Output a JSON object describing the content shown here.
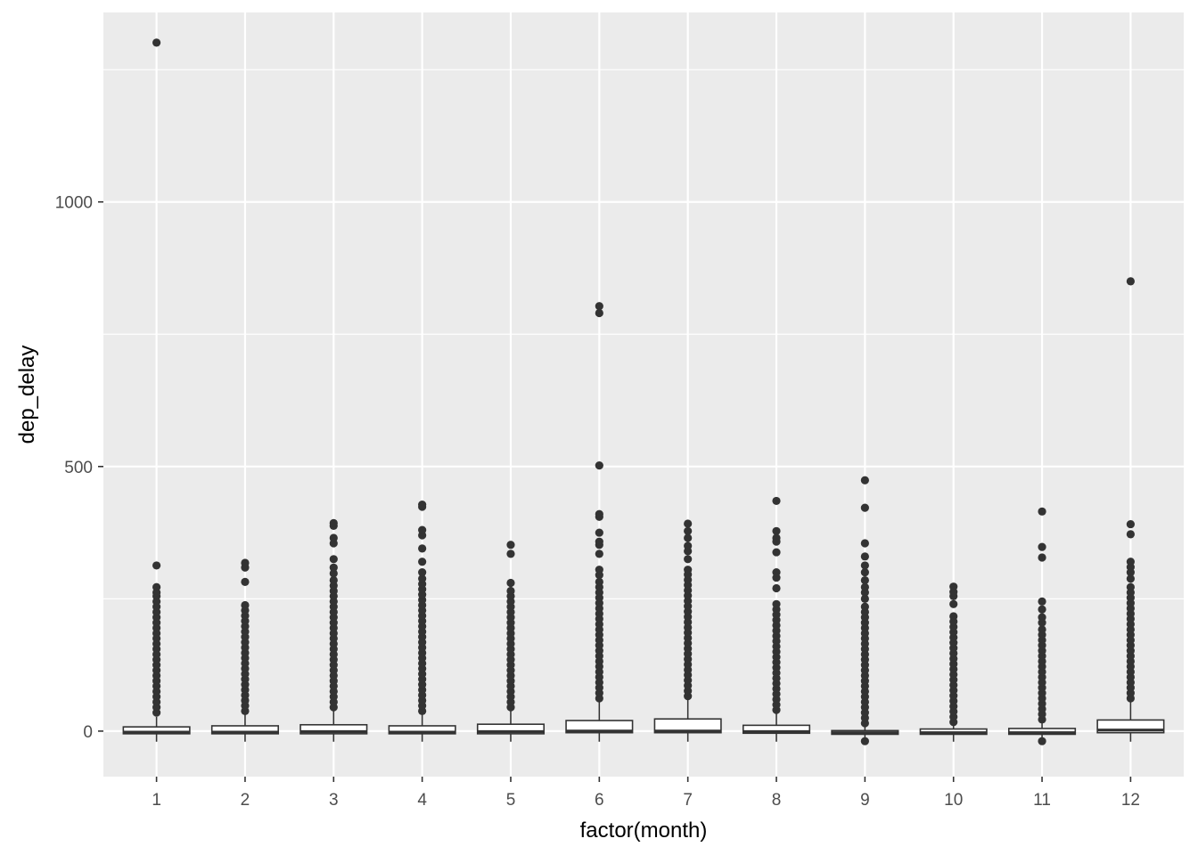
{
  "chart_data": {
    "type": "boxplot",
    "xlabel": "factor(month)",
    "ylabel": "dep_delay",
    "categories": [
      "1",
      "2",
      "3",
      "4",
      "5",
      "6",
      "7",
      "8",
      "9",
      "10",
      "11",
      "12"
    ],
    "y_ticks": [
      0,
      500,
      1000
    ],
    "y_tick_labels": [
      "0",
      "500",
      "1000"
    ],
    "ylim": [
      -86,
      1358
    ],
    "grid": true,
    "background": "#EBEBEB",
    "gridline_color": "#FFFFFF",
    "box_fill": "#FFFFFF",
    "outline_color": "#333333",
    "boxes": [
      {
        "month": "1",
        "min": -20,
        "q1": -5,
        "median": -2,
        "q3": 8,
        "max": 27,
        "outliers": [
          35,
          45,
          55,
          65,
          75,
          85,
          95,
          105,
          115,
          125,
          135,
          145,
          155,
          165,
          175,
          185,
          195,
          205,
          215,
          225,
          235,
          245,
          255,
          262,
          272,
          313,
          1301
        ]
      },
      {
        "month": "2",
        "min": -20,
        "q1": -5,
        "median": -2,
        "q3": 10,
        "max": 32,
        "outliers": [
          38,
          48,
          58,
          68,
          78,
          88,
          98,
          108,
          118,
          128,
          138,
          148,
          158,
          168,
          178,
          188,
          198,
          208,
          218,
          228,
          238,
          282,
          309,
          318
        ]
      },
      {
        "month": "3",
        "min": -20,
        "q1": -5,
        "median": -1,
        "q3": 12,
        "max": 38,
        "outliers": [
          45,
          55,
          65,
          75,
          85,
          95,
          105,
          115,
          125,
          135,
          145,
          155,
          165,
          175,
          185,
          195,
          205,
          215,
          225,
          235,
          245,
          255,
          265,
          275,
          285,
          298,
          309,
          325,
          355,
          365,
          388,
          393
        ]
      },
      {
        "month": "4",
        "min": -20,
        "q1": -5,
        "median": -2,
        "q3": 10,
        "max": 32,
        "outliers": [
          38,
          48,
          58,
          68,
          78,
          88,
          98,
          108,
          118,
          128,
          138,
          148,
          158,
          168,
          178,
          188,
          198,
          208,
          218,
          228,
          238,
          248,
          258,
          268,
          278,
          288,
          300,
          320,
          345,
          370,
          380,
          424,
          428
        ]
      },
      {
        "month": "5",
        "min": -20,
        "q1": -5,
        "median": -1,
        "q3": 13,
        "max": 38,
        "outliers": [
          45,
          55,
          65,
          75,
          85,
          95,
          105,
          115,
          125,
          135,
          145,
          155,
          165,
          175,
          185,
          195,
          205,
          215,
          225,
          235,
          245,
          255,
          265,
          280,
          335,
          352
        ]
      },
      {
        "month": "6",
        "min": -20,
        "q1": -3,
        "median": 0,
        "q3": 20,
        "max": 55,
        "outliers": [
          62,
          72,
          82,
          92,
          102,
          112,
          122,
          132,
          142,
          152,
          162,
          172,
          182,
          192,
          202,
          212,
          222,
          232,
          242,
          252,
          262,
          272,
          282,
          295,
          305,
          335,
          352,
          358,
          375,
          405,
          410,
          502,
          790,
          803
        ]
      },
      {
        "month": "7",
        "min": -20,
        "q1": -3,
        "median": 0,
        "q3": 23,
        "max": 59,
        "outliers": [
          66,
          76,
          86,
          96,
          106,
          116,
          126,
          136,
          146,
          156,
          166,
          176,
          186,
          196,
          206,
          216,
          226,
          236,
          246,
          256,
          266,
          276,
          286,
          296,
          305,
          325,
          340,
          350,
          365,
          378,
          392
        ]
      },
      {
        "month": "8",
        "min": -20,
        "q1": -4,
        "median": -1,
        "q3": 11,
        "max": 34,
        "outliers": [
          40,
          50,
          60,
          70,
          80,
          90,
          100,
          110,
          120,
          130,
          140,
          150,
          160,
          170,
          180,
          190,
          200,
          210,
          220,
          230,
          240,
          270,
          290,
          300,
          338,
          358,
          365,
          378,
          435
        ]
      },
      {
        "month": "9",
        "min": -20,
        "q1": -6,
        "median": -3,
        "q3": 1,
        "max": 10,
        "outliers": [
          -19,
          15,
          25,
          35,
          45,
          55,
          65,
          75,
          85,
          95,
          105,
          115,
          125,
          135,
          145,
          155,
          165,
          175,
          185,
          195,
          205,
          215,
          225,
          235,
          250,
          262,
          272,
          285,
          300,
          313,
          330,
          355,
          422,
          474
        ]
      },
      {
        "month": "10",
        "min": -20,
        "q1": -6,
        "median": -3,
        "q3": 4,
        "max": 12,
        "outliers": [
          17,
          27,
          37,
          47,
          57,
          67,
          77,
          87,
          97,
          107,
          117,
          127,
          137,
          147,
          157,
          167,
          177,
          187,
          197,
          207,
          217,
          240,
          255,
          263,
          273
        ]
      },
      {
        "month": "11",
        "min": -20,
        "q1": -6,
        "median": -3,
        "q3": 5,
        "max": 15,
        "outliers": [
          -19,
          22,
          32,
          42,
          52,
          62,
          72,
          82,
          92,
          102,
          112,
          122,
          132,
          142,
          152,
          162,
          172,
          182,
          192,
          205,
          215,
          230,
          245,
          328,
          348,
          415
        ]
      },
      {
        "month": "12",
        "min": -20,
        "q1": -3,
        "median": 2,
        "q3": 21,
        "max": 55,
        "outliers": [
          62,
          72,
          82,
          92,
          102,
          112,
          122,
          132,
          142,
          152,
          162,
          172,
          182,
          192,
          202,
          212,
          222,
          232,
          242,
          252,
          262,
          272,
          288,
          300,
          310,
          320,
          372,
          391,
          850
        ]
      }
    ]
  }
}
